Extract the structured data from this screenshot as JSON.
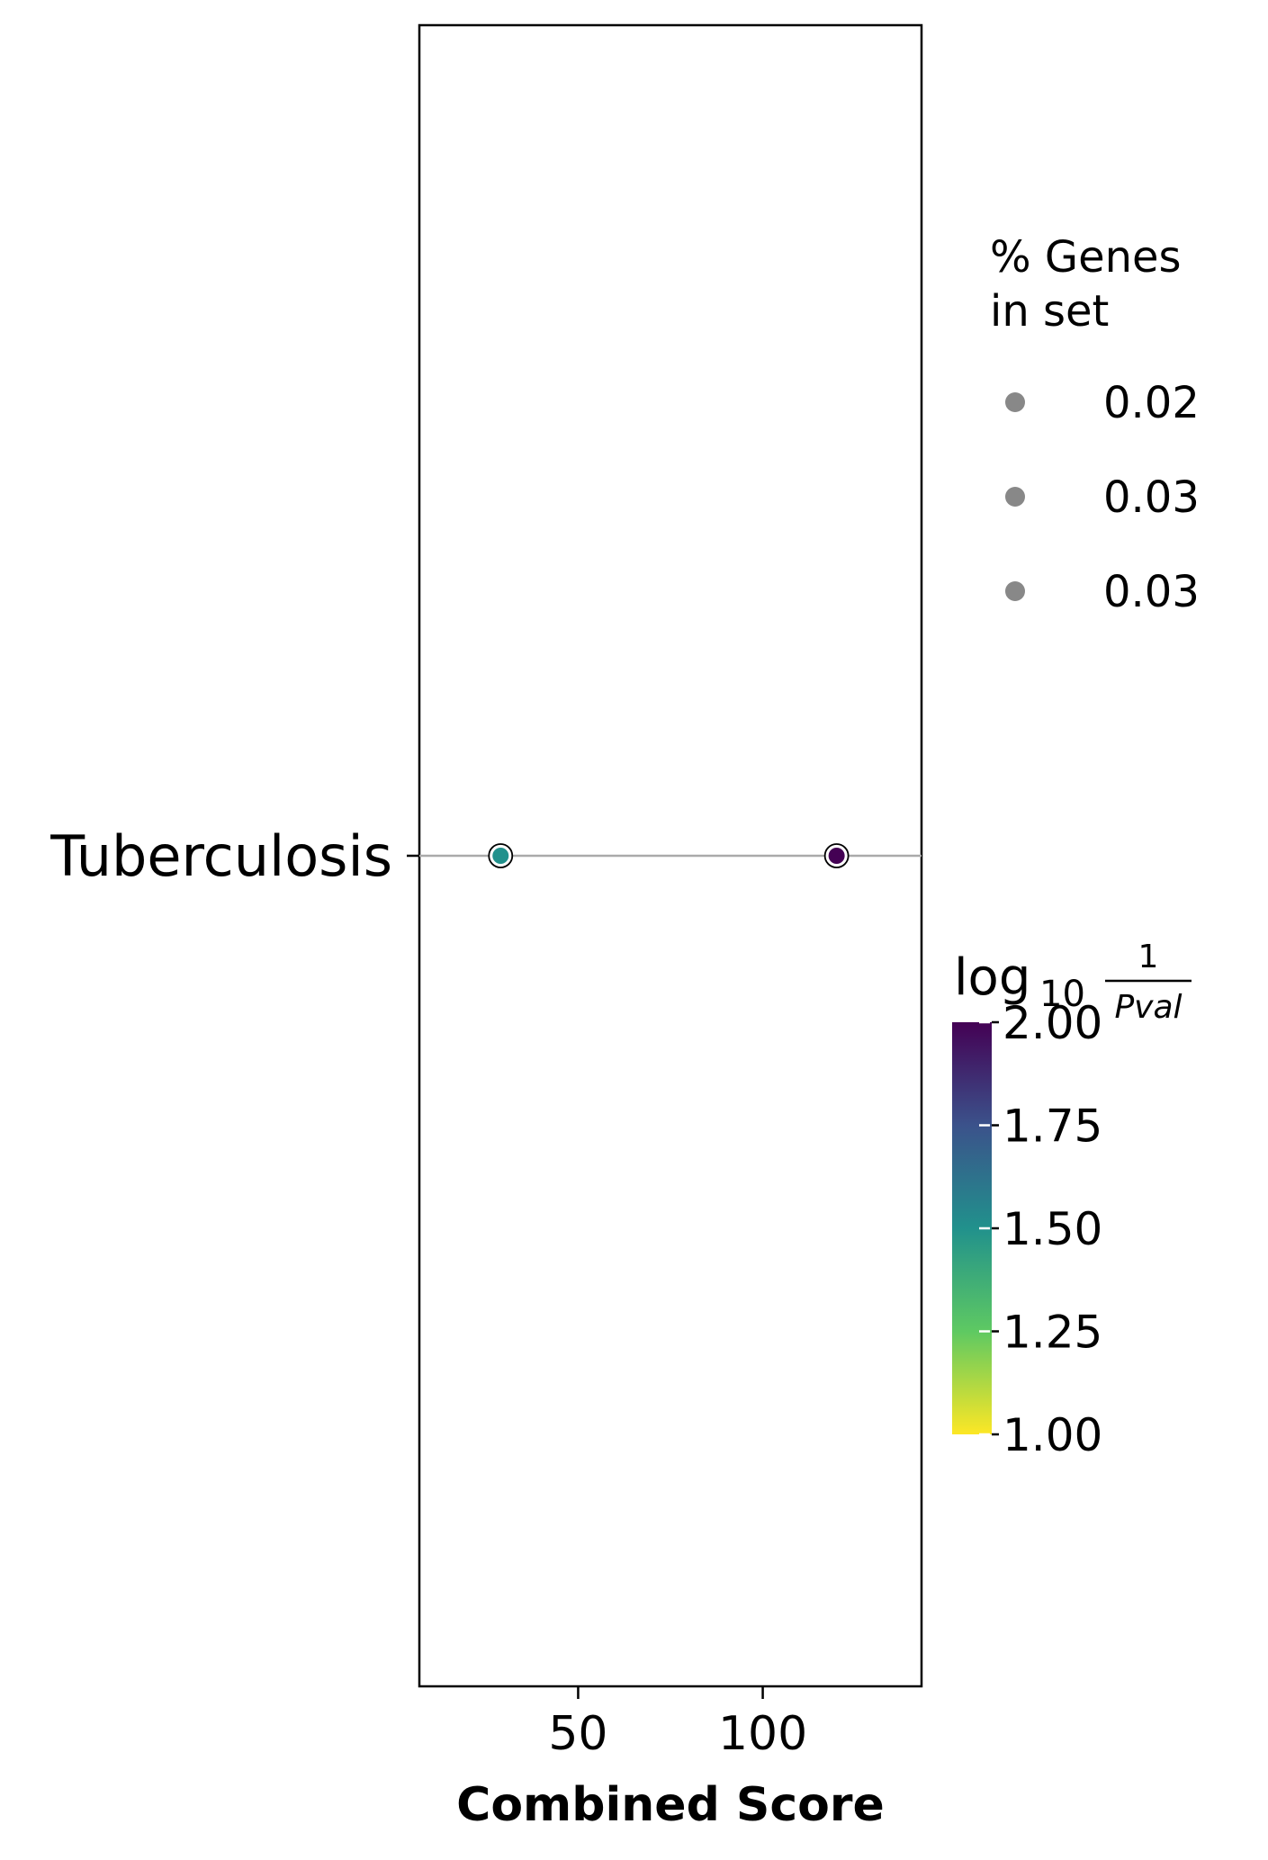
{
  "chart_data": {
    "type": "scatter",
    "title": "",
    "xlabel": "Combined Score",
    "ylabel": "",
    "xlim": [
      7,
      143
    ],
    "xticks": [
      50,
      100
    ],
    "xtick_labels": [
      "50",
      "100"
    ],
    "categories": [
      "Tuberculosis"
    ],
    "grid": "horizontal line per category",
    "points": [
      {
        "category": "Tuberculosis",
        "x": 29,
        "size_value": 0.03,
        "color_value": 1.5
      },
      {
        "category": "Tuberculosis",
        "x": 120,
        "size_value": 0.03,
        "color_value": 2.0
      }
    ],
    "size_legend": {
      "title_line1": "% Genes",
      "title_line2": "in set",
      "entries": [
        "0.02",
        "0.03",
        "0.03"
      ],
      "marker_color": "#888888"
    },
    "colorbar": {
      "title_main": "log",
      "title_sub": "10",
      "title_numerator": "1",
      "title_denominator": "Pval",
      "range": [
        1.0,
        2.0
      ],
      "ticks": [
        1.0,
        1.25,
        1.5,
        1.75,
        2.0
      ],
      "tick_labels": [
        "1.00",
        "1.25",
        "1.50",
        "1.75",
        "2.00"
      ],
      "colormap": "viridis_r",
      "stops": [
        "#fde725",
        "#5ec962",
        "#21918c",
        "#3b528b",
        "#440154"
      ]
    }
  }
}
